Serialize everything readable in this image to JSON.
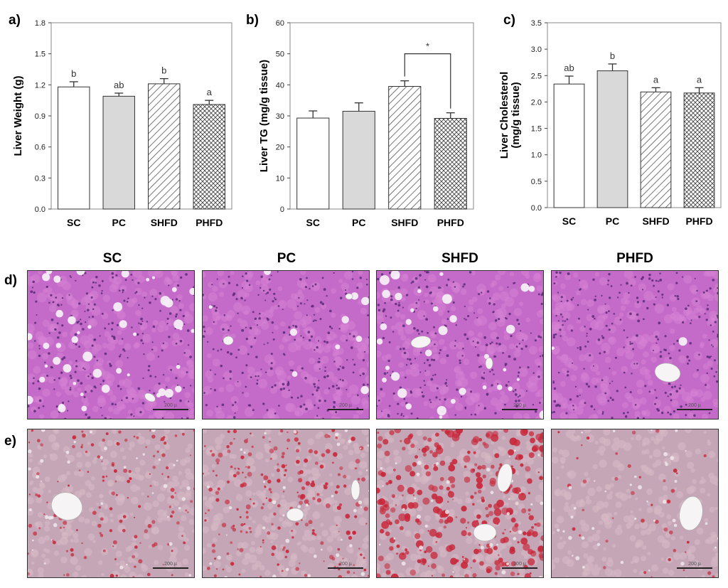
{
  "panel_labels": {
    "a": "a)",
    "b": "b)",
    "c": "c)",
    "d": "d)",
    "e": "e)"
  },
  "column_titles": [
    "SC",
    "PC",
    "SHFD",
    "PHFD"
  ],
  "scale_label": "200 µ",
  "fills": {
    "SC": "#ffffff",
    "PC": "#d9d9d9",
    "SHFD": "hatch",
    "PHFD": "crosshatch"
  },
  "chart_data": [
    {
      "type": "bar",
      "ylabel": "Liver Weight (g)",
      "categories": [
        "SC",
        "PC",
        "SHFD",
        "PHFD"
      ],
      "values": [
        1.18,
        1.09,
        1.21,
        1.01
      ],
      "errors": [
        0.05,
        0.03,
        0.05,
        0.04
      ],
      "significance": [
        "b",
        "ab",
        "b",
        "a"
      ],
      "ylim": [
        0,
        1.8
      ],
      "yticks": [
        "0.0",
        "0.3",
        "0.6",
        "0.9",
        "1.2",
        "1.5",
        "1.8"
      ],
      "grid": false
    },
    {
      "type": "bar",
      "ylabel": "Liver TG (mg/g tissue)",
      "categories": [
        "SC",
        "PC",
        "SHFD",
        "PHFD"
      ],
      "values": [
        29.3,
        31.5,
        39.5,
        29.2
      ],
      "errors": [
        2.3,
        2.7,
        1.8,
        1.8
      ],
      "significance": [
        "",
        "",
        "",
        ""
      ],
      "bracket": {
        "from": "SHFD",
        "to": "PHFD",
        "label": "*"
      },
      "ylim": [
        0,
        60
      ],
      "yticks": [
        "0",
        "10",
        "20",
        "30",
        "40",
        "50",
        "60"
      ],
      "grid": false
    },
    {
      "type": "bar",
      "ylabel": "Liver Cholesterol",
      "ylabel2": "(mg/g tissue)",
      "categories": [
        "SC",
        "PC",
        "SHFD",
        "PHFD"
      ],
      "values": [
        2.34,
        2.59,
        2.19,
        2.17
      ],
      "errors": [
        0.15,
        0.13,
        0.08,
        0.1
      ],
      "significance": [
        "ab",
        "b",
        "a",
        "a"
      ],
      "ylim": [
        0,
        3.5
      ],
      "yticks": [
        "0.0",
        "0.5",
        "1.0",
        "1.5",
        "2.0",
        "2.5",
        "3.0",
        "3.5"
      ],
      "grid": false
    }
  ],
  "histology": {
    "he": {
      "bg": "#c46ac9",
      "cell": "#d883d6",
      "nucleus": "#5b2a78"
    },
    "oilred": {
      "bg": "#c4a6b6",
      "cell": "#d7b9c5",
      "droplet": "#c8283a",
      "vessel_stain": "#5566a8"
    }
  }
}
